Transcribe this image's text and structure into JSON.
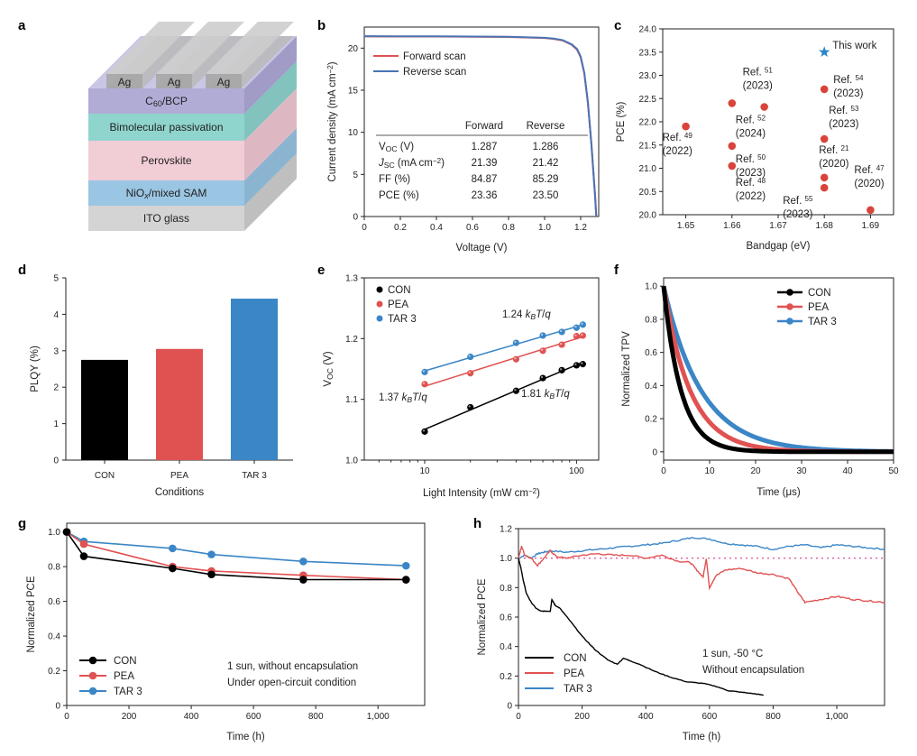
{
  "panel_letters": {
    "a": "a",
    "b": "b",
    "c": "c",
    "d": "d",
    "e": "e",
    "f": "f",
    "g": "g",
    "h": "h"
  },
  "device_stack": {
    "contact": "Ag",
    "layers": [
      {
        "label": "C60/BCP",
        "front": "#a9a3d2",
        "top": "#c0bce2",
        "side": "#8f89bd"
      },
      {
        "label": "Bimolecular passivation",
        "front": "#84cfc9",
        "top": "#a4ddd8",
        "side": "#6cb8b2"
      },
      {
        "label": "Perovskite",
        "front": "#f0c8d2",
        "top": "#f6d8e0",
        "side": "#d7acb7"
      },
      {
        "label": "NiOx/mixed SAM",
        "front": "#8fbfe0",
        "top": "#aad0ea",
        "side": "#77a7c8"
      },
      {
        "label": "ITO glass",
        "front": "#cfcfcf",
        "top": "#dedede",
        "side": "#b4b4b4"
      }
    ]
  },
  "colors": {
    "con": "#000000",
    "pea": "#e05252",
    "tar": "#3a86c6",
    "jv": "#4a74b4",
    "ref": "#d9443a",
    "star": "#2a86c8"
  },
  "chart_data": [
    {
      "id": "b",
      "type": "line",
      "xlabel": "Voltage (V)",
      "ylabel": "Current density (mA cm⁻²)",
      "xlim": [
        0,
        1.3
      ],
      "ylim": [
        0,
        22.5
      ],
      "xticks": [
        "0",
        "0.2",
        "0.4",
        "0.6",
        "0.8",
        "1.0",
        "1.2"
      ],
      "xtick_vals": [
        0,
        0.2,
        0.4,
        0.6,
        0.8,
        1.0,
        1.2
      ],
      "yticks": [
        "0",
        "5",
        "10",
        "15",
        "20"
      ],
      "ytick_vals": [
        0,
        5,
        10,
        15,
        20
      ],
      "legend": [
        "Forward scan",
        "Reverse scan"
      ],
      "series": [
        {
          "name": "Forward scan",
          "x": [
            0,
            0.2,
            0.4,
            0.6,
            0.8,
            1.0,
            1.05,
            1.1,
            1.15,
            1.18,
            1.2,
            1.22,
            1.24,
            1.26,
            1.28,
            1.287
          ],
          "y": [
            21.39,
            21.38,
            21.37,
            21.35,
            21.32,
            21.2,
            21.1,
            20.9,
            20.4,
            19.8,
            18.9,
            17.0,
            13.5,
            8.5,
            2.5,
            0
          ]
        },
        {
          "name": "Reverse scan",
          "x": [
            0,
            0.2,
            0.4,
            0.6,
            0.8,
            1.0,
            1.05,
            1.1,
            1.15,
            1.18,
            1.2,
            1.22,
            1.24,
            1.26,
            1.28,
            1.286
          ],
          "y": [
            21.42,
            21.41,
            21.4,
            21.38,
            21.35,
            21.23,
            21.13,
            20.95,
            20.45,
            19.9,
            19.0,
            17.1,
            13.6,
            8.4,
            2.3,
            0
          ]
        }
      ],
      "table": {
        "headers": [
          "",
          "Forward",
          "Reverse"
        ],
        "rows": [
          [
            "V_OC (V)",
            "1.287",
            "1.286"
          ],
          [
            "J_SC (mA cm⁻²)",
            "21.39",
            "21.42"
          ],
          [
            "FF (%)",
            "84.87",
            "85.29"
          ],
          [
            "PCE (%)",
            "23.36",
            "23.50"
          ]
        ]
      }
    },
    {
      "id": "c",
      "type": "scatter",
      "xlabel": "Bandgap (eV)",
      "ylabel": "PCE (%)",
      "xlim": [
        1.645,
        1.695
      ],
      "ylim": [
        20.0,
        24.0
      ],
      "xticks": [
        "1.65",
        "1.66",
        "1.67",
        "1.68",
        "1.69"
      ],
      "xtick_vals": [
        1.65,
        1.66,
        1.67,
        1.68,
        1.69
      ],
      "yticks": [
        "20.0",
        "20.5",
        "21.0",
        "21.5",
        "22.0",
        "22.5",
        "23.0",
        "23.5",
        "24.0"
      ],
      "ytick_vals": [
        20,
        20.5,
        21,
        21.5,
        22,
        22.5,
        23,
        23.5,
        24
      ],
      "points": [
        {
          "x": 1.65,
          "y": 21.9,
          "ref": "49",
          "year": "(2022)"
        },
        {
          "x": 1.66,
          "y": 22.4,
          "ref": "52",
          "year": "(2024)"
        },
        {
          "x": 1.66,
          "y": 21.48,
          "ref": "50",
          "year": "(2023)"
        },
        {
          "x": 1.66,
          "y": 21.05,
          "ref": "48",
          "year": "(2022)"
        },
        {
          "x": 1.667,
          "y": 22.32,
          "ref": "51",
          "year": "(2023)"
        },
        {
          "x": 1.68,
          "y": 22.7,
          "ref": "54",
          "year": "(2023)"
        },
        {
          "x": 1.68,
          "y": 21.63,
          "ref": "53",
          "year": "(2023)"
        },
        {
          "x": 1.68,
          "y": 20.8,
          "ref": "21",
          "year": "(2020)"
        },
        {
          "x": 1.68,
          "y": 20.58,
          "ref": "55",
          "year": "(2023)"
        },
        {
          "x": 1.69,
          "y": 20.1,
          "ref": "47",
          "year": "(2020)"
        }
      ],
      "this_work": {
        "x": 1.68,
        "y": 23.5,
        "label": "This work"
      }
    },
    {
      "id": "d",
      "type": "bar",
      "xlabel": "Conditions",
      "ylabel": "PLQY (%)",
      "ylim": [
        0,
        5
      ],
      "yticks": [
        "0",
        "1",
        "2",
        "3",
        "4",
        "5"
      ],
      "ytick_vals": [
        0,
        1,
        2,
        3,
        4,
        5
      ],
      "categories": [
        "CON",
        "PEA",
        "TAR 3"
      ],
      "values": [
        2.75,
        3.05,
        4.43
      ]
    },
    {
      "id": "e",
      "type": "scatter",
      "xlabel": "Light Intensity (mW cm⁻²)",
      "ylabel": "V_OC (V)",
      "xscale": "log",
      "xlim": [
        4,
        140
      ],
      "ylim": [
        1.0,
        1.3
      ],
      "xticks": [
        "10",
        "100"
      ],
      "xtick_vals": [
        10,
        100
      ],
      "yticks": [
        "1.0",
        "1.1",
        "1.2",
        "1.3"
      ],
      "ytick_vals": [
        1.0,
        1.1,
        1.2,
        1.3
      ],
      "legend": [
        "CON",
        "PEA",
        "TAR 3"
      ],
      "series": [
        {
          "name": "CON",
          "x": [
            10,
            20,
            40,
            60,
            80,
            100,
            110
          ],
          "y": [
            1.047,
            1.087,
            1.114,
            1.135,
            1.148,
            1.156,
            1.158
          ],
          "fit_label": "1.81 k_BT/q"
        },
        {
          "name": "PEA",
          "x": [
            10,
            20,
            40,
            60,
            80,
            100,
            110
          ],
          "y": [
            1.125,
            1.143,
            1.166,
            1.18,
            1.19,
            1.204,
            1.205
          ],
          "fit_label": "1.37 k_BT/q"
        },
        {
          "name": "TAR 3",
          "x": [
            10,
            20,
            40,
            60,
            80,
            100,
            110
          ],
          "y": [
            1.145,
            1.17,
            1.193,
            1.205,
            1.211,
            1.218,
            1.223
          ],
          "fit_label": "1.24 k_BT/q"
        }
      ]
    },
    {
      "id": "f",
      "type": "line",
      "xlabel": "Time (μs)",
      "ylabel": "Normalized TPV",
      "xlim": [
        0,
        50
      ],
      "ylim": [
        -0.05,
        1.05
      ],
      "xticks": [
        "0",
        "10",
        "20",
        "30",
        "40",
        "50"
      ],
      "xtick_vals": [
        0,
        10,
        20,
        30,
        40,
        50
      ],
      "yticks": [
        "0",
        "0.2",
        "0.4",
        "0.6",
        "0.8",
        "1.0"
      ],
      "ytick_vals": [
        0,
        0.2,
        0.4,
        0.6,
        0.8,
        1.0
      ],
      "legend": [
        "CON",
        "PEA",
        "TAR 3"
      ],
      "series": [
        {
          "name": "CON",
          "tau": 3.8
        },
        {
          "name": "PEA",
          "tau": 5.8
        },
        {
          "name": "TAR 3",
          "tau": 8.2
        }
      ]
    },
    {
      "id": "g",
      "type": "line",
      "xlabel": "Time (h)",
      "ylabel": "Normalized PCE",
      "xlim": [
        0,
        1150
      ],
      "ylim": [
        0,
        1.05
      ],
      "xticks": [
        "0",
        "200",
        "400",
        "600",
        "800",
        "1,000"
      ],
      "xtick_vals": [
        0,
        200,
        400,
        600,
        800,
        1000
      ],
      "yticks": [
        "0",
        "0.2",
        "0.4",
        "0.6",
        "0.8",
        "1.0"
      ],
      "ytick_vals": [
        0,
        0.2,
        0.4,
        0.6,
        0.8,
        1.0
      ],
      "legend": [
        "CON",
        "PEA",
        "TAR 3"
      ],
      "annotation": [
        "1 sun, without encapsulation",
        "Under open-circuit condition"
      ],
      "series": [
        {
          "name": "CON",
          "x": [
            0,
            55,
            340,
            465,
            760,
            1090
          ],
          "y": [
            1.0,
            0.86,
            0.79,
            0.755,
            0.725,
            0.725
          ]
        },
        {
          "name": "PEA",
          "x": [
            0,
            55,
            340,
            465,
            760,
            1090
          ],
          "y": [
            1.0,
            0.93,
            0.8,
            0.775,
            0.75,
            0.725
          ]
        },
        {
          "name": "TAR 3",
          "x": [
            0,
            55,
            340,
            465,
            760,
            1090
          ],
          "y": [
            1.0,
            0.945,
            0.905,
            0.87,
            0.83,
            0.805
          ]
        }
      ]
    },
    {
      "id": "h",
      "type": "line",
      "xlabel": "Time (h)",
      "ylabel": "Normalized PCE",
      "xlim": [
        0,
        1150
      ],
      "ylim": [
        0,
        1.2
      ],
      "xticks": [
        "0",
        "200",
        "400",
        "600",
        "800",
        "1,000"
      ],
      "xtick_vals": [
        0,
        200,
        400,
        600,
        800,
        1000
      ],
      "yticks": [
        "0",
        "0.2",
        "0.4",
        "0.6",
        "0.8",
        "1.0",
        "1.2"
      ],
      "ytick_vals": [
        0,
        0.2,
        0.4,
        0.6,
        0.8,
        1.0,
        1.2
      ],
      "legend": [
        "CON",
        "PEA",
        "TAR 3"
      ],
      "annotation": [
        "1 sun, -50 °C",
        "Without encapsulation"
      ],
      "reference_line": 1.0,
      "series": [
        {
          "name": "CON",
          "x": [
            0,
            8,
            15,
            25,
            40,
            55,
            70,
            85,
            100,
            105,
            110,
            115,
            130,
            160,
            200,
            240,
            280,
            310,
            330,
            380,
            430,
            480,
            530,
            580,
            620,
            660,
            700,
            740,
            770
          ],
          "y": [
            1.0,
            0.93,
            0.85,
            0.76,
            0.7,
            0.66,
            0.64,
            0.64,
            0.64,
            0.72,
            0.7,
            0.68,
            0.66,
            0.58,
            0.47,
            0.38,
            0.31,
            0.28,
            0.32,
            0.28,
            0.23,
            0.19,
            0.16,
            0.15,
            0.13,
            0.1,
            0.09,
            0.08,
            0.07
          ]
        },
        {
          "name": "PEA",
          "x": [
            0,
            10,
            20,
            40,
            60,
            80,
            100,
            120,
            150,
            200,
            250,
            300,
            350,
            400,
            450,
            500,
            540,
            560,
            580,
            590,
            600,
            620,
            650,
            700,
            750,
            800,
            850,
            880,
            900,
            950,
            1000,
            1050,
            1100,
            1150
          ],
          "y": [
            1.0,
            1.08,
            1.02,
            1.0,
            0.95,
            1.0,
            1.05,
            1.01,
            1.0,
            1.02,
            1.03,
            1.02,
            1.02,
            1.0,
            1.02,
            0.98,
            0.97,
            0.92,
            0.87,
            1.0,
            0.8,
            0.88,
            0.92,
            0.93,
            0.9,
            0.89,
            0.86,
            0.76,
            0.7,
            0.72,
            0.74,
            0.72,
            0.71,
            0.7
          ]
        },
        {
          "name": "TAR 3",
          "x": [
            0,
            20,
            40,
            60,
            80,
            100,
            150,
            200,
            250,
            300,
            350,
            400,
            450,
            500,
            550,
            600,
            650,
            700,
            750,
            800,
            850,
            900,
            950,
            1000,
            1050,
            1100,
            1150
          ],
          "y": [
            1.0,
            1.02,
            1.0,
            1.03,
            1.04,
            1.05,
            1.04,
            1.05,
            1.06,
            1.07,
            1.08,
            1.09,
            1.1,
            1.12,
            1.14,
            1.13,
            1.1,
            1.09,
            1.08,
            1.06,
            1.08,
            1.09,
            1.07,
            1.09,
            1.08,
            1.07,
            1.06
          ]
        }
      ]
    }
  ]
}
